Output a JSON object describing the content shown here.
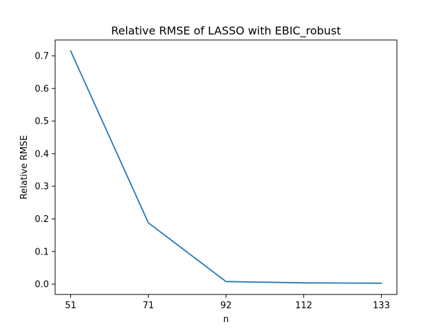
{
  "chart_data": {
    "type": "line",
    "title": "Relative RMSE of LASSO with EBIC_robust",
    "xlabel": "n",
    "ylabel": "Relative RMSE",
    "x": [
      51,
      71,
      92,
      112,
      133
    ],
    "x_tick_labels": [
      "51",
      "71",
      "92",
      "112",
      "133"
    ],
    "y_ticks": [
      0.0,
      0.1,
      0.2,
      0.3,
      0.4,
      0.5,
      0.6,
      0.7
    ],
    "y_tick_labels": [
      "0.0",
      "0.1",
      "0.2",
      "0.3",
      "0.4",
      "0.5",
      "0.6",
      "0.7"
    ],
    "ylim": [
      -0.0315,
      0.7485
    ],
    "series": [
      {
        "values": [
          0.715,
          0.188,
          0.008,
          0.004,
          0.003
        ],
        "color": "#1f77b4"
      }
    ],
    "grid": false,
    "legend": "none"
  }
}
